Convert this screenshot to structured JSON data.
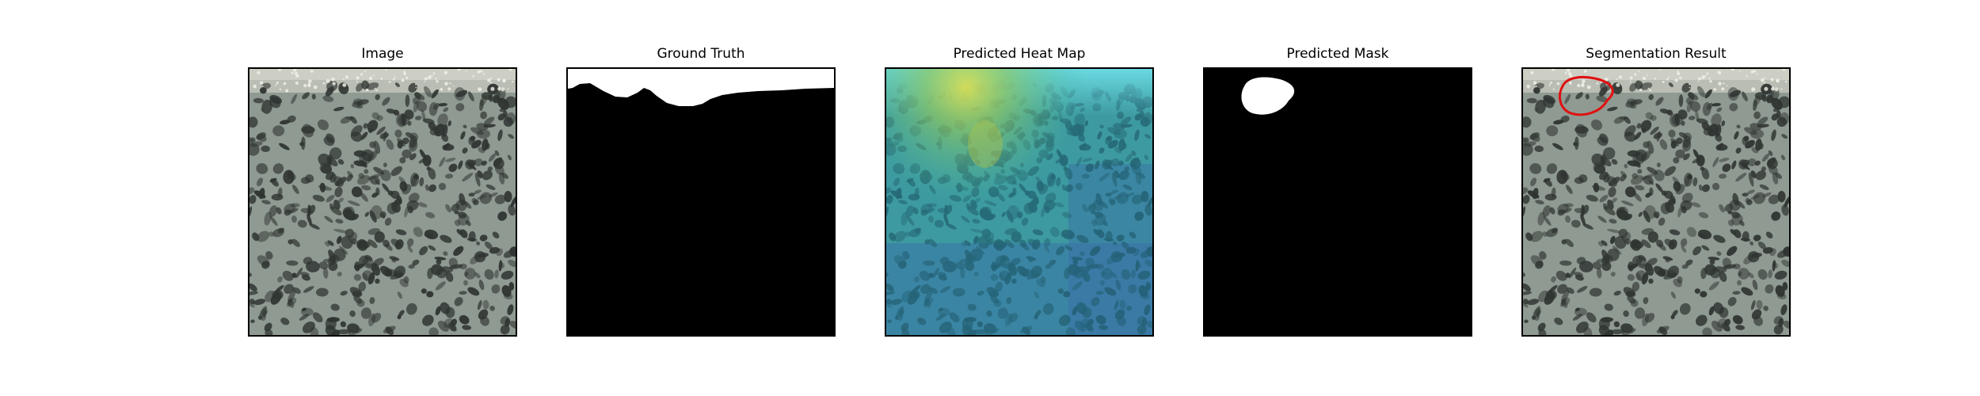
{
  "figure": {
    "panels": [
      {
        "title": "Image",
        "content": "texture-photo"
      },
      {
        "title": "Ground Truth",
        "content": "ground-truth-mask"
      },
      {
        "title": "Predicted Heat Map",
        "content": "heatmap-overlay"
      },
      {
        "title": "Predicted Mask",
        "content": "predicted-mask"
      },
      {
        "title": "Segmentation Result",
        "content": "texture-photo-with-outline"
      }
    ],
    "colors": {
      "texture_base": "#8f9a92",
      "texture_spot": "#2f3431",
      "mask_fg": "#ffffff",
      "mask_bg": "#000000",
      "outline": "#e01010"
    }
  }
}
